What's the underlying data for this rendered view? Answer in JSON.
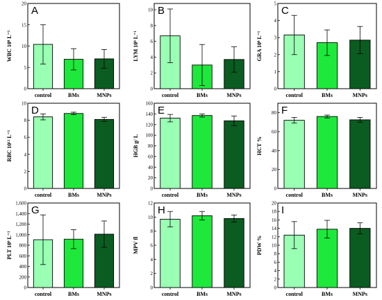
{
  "chart_data": [
    {
      "type": "bar",
      "panel": "A",
      "ylabel": "WBC 10⁹ L⁻¹",
      "categories": [
        "control",
        "BMs",
        "MNPs"
      ],
      "values": [
        10.4,
        6.9,
        7.0
      ],
      "errors": [
        4.6,
        2.5,
        2.2
      ],
      "ylim": [
        0,
        20
      ],
      "yticks": [
        0,
        5,
        10,
        15,
        20
      ],
      "ytick_labels": [
        "0",
        "5",
        "10",
        "15",
        "20"
      ]
    },
    {
      "type": "bar",
      "panel": "B",
      "ylabel": "LYM 10⁹ L⁻¹",
      "categories": [
        "control",
        "BMs",
        "MNPs"
      ],
      "values": [
        6.7,
        3.0,
        3.7
      ],
      "errors": [
        3.4,
        2.6,
        1.6
      ],
      "ylim": [
        0,
        10.8
      ],
      "yticks": [
        0,
        2,
        4,
        6,
        8,
        10
      ],
      "ytick_labels": [
        "0",
        "2",
        "4",
        "6",
        "8",
        "10"
      ]
    },
    {
      "type": "bar",
      "panel": "C",
      "ylabel": "GRA 10⁹ L⁻¹",
      "categories": [
        "control",
        "BMs",
        "MNPs"
      ],
      "values": [
        3.15,
        2.7,
        2.85
      ],
      "errors": [
        1.15,
        0.75,
        0.8
      ],
      "ylim": [
        0,
        5
      ],
      "yticks": [
        0,
        1,
        2,
        3,
        4,
        5
      ],
      "ytick_labels": [
        "0",
        "1",
        "2",
        "3",
        "4",
        "5"
      ]
    },
    {
      "type": "bar",
      "panel": "D",
      "ylabel": "RBC 10¹² L⁻¹",
      "categories": [
        "control",
        "BMs",
        "MNPs"
      ],
      "values": [
        8.4,
        8.8,
        8.1
      ],
      "errors": [
        0.35,
        0.15,
        0.25
      ],
      "ylim": [
        0,
        10
      ],
      "yticks": [
        0,
        2,
        4,
        6,
        8,
        10
      ],
      "ytick_labels": [
        "0",
        "2",
        "4",
        "6",
        "8",
        "10"
      ]
    },
    {
      "type": "bar",
      "panel": "E",
      "ylabel": "HGB g/ L",
      "categories": [
        "control",
        "BMs",
        "MNPs"
      ],
      "values": [
        132,
        137,
        127
      ],
      "errors": [
        7,
        3,
        9
      ],
      "ylim": [
        0,
        160
      ],
      "yticks": [
        0,
        20,
        40,
        60,
        80,
        100,
        120,
        140,
        160
      ],
      "ytick_labels": [
        "0",
        "20",
        "40",
        "60",
        "80",
        "100",
        "120",
        "140",
        "160"
      ]
    },
    {
      "type": "bar",
      "panel": "F",
      "ylabel": "HCT %",
      "categories": [
        "control",
        "BMs",
        "MNPs"
      ],
      "values": [
        72,
        76,
        72.5
      ],
      "errors": [
        3,
        1.5,
        2.5
      ],
      "ylim": [
        0,
        90
      ],
      "yticks": [
        0,
        20,
        40,
        60,
        80
      ],
      "ytick_labels": [
        "0",
        "20",
        "40",
        "60",
        "80"
      ]
    },
    {
      "type": "bar",
      "panel": "G",
      "ylabel": "PLT 10⁹ L⁻¹",
      "categories": [
        "control",
        "BMs",
        "MNPs"
      ],
      "values": [
        905,
        915,
        1010
      ],
      "errors": [
        470,
        180,
        250
      ],
      "ylim": [
        0,
        1600
      ],
      "yticks": [
        0,
        200,
        400,
        600,
        800,
        1000,
        1200,
        1400,
        1600
      ],
      "ytick_labels": [
        "0",
        "200",
        "400",
        "600",
        "800",
        "1,000",
        "1,200",
        "1,400",
        "1,600"
      ]
    },
    {
      "type": "bar",
      "panel": "H",
      "ylabel": "MPV fl",
      "categories": [
        "control",
        "BMs",
        "MNPs"
      ],
      "values": [
        9.7,
        10.2,
        9.8
      ],
      "errors": [
        1.1,
        0.6,
        0.5
      ],
      "ylim": [
        0,
        12
      ],
      "yticks": [
        0,
        2,
        4,
        6,
        8,
        10,
        12
      ],
      "ytick_labels": [
        "0",
        "2",
        "4",
        "6",
        "8",
        "10",
        "12"
      ]
    },
    {
      "type": "bar",
      "panel": "I",
      "ylabel": "PDW %",
      "categories": [
        "control",
        "BMs",
        "MNPs"
      ],
      "values": [
        12.4,
        13.8,
        14.0
      ],
      "errors": [
        3.2,
        2.1,
        1.3
      ],
      "ylim": [
        0,
        20
      ],
      "yticks": [
        0,
        2,
        4,
        6,
        8,
        10,
        12,
        14,
        16,
        18,
        20
      ],
      "ytick_labels": [
        "0",
        "2",
        "4",
        "6",
        "8",
        "10",
        "12",
        "14",
        "16",
        "18",
        "20"
      ]
    }
  ],
  "colors": {
    "control": "#99ffb3",
    "BMs": "#1ee83c",
    "MNPs": "#0a5c20"
  }
}
